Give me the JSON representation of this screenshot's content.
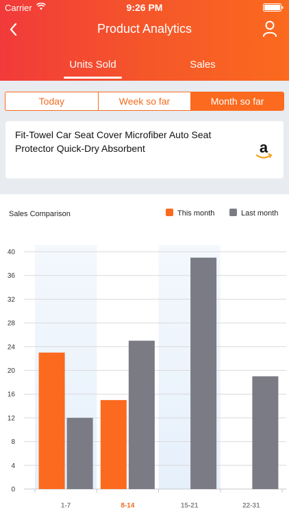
{
  "status_bar": {
    "carrier": "Carrier",
    "time": "9:26 PM"
  },
  "header": {
    "title": "Product Analytics",
    "back_icon": "chevron-left-icon",
    "profile_icon": "person-icon",
    "tabs": [
      {
        "label": "Units Sold",
        "active": true
      },
      {
        "label": "Sales",
        "active": false
      }
    ]
  },
  "period": {
    "options": [
      {
        "label": "Today"
      },
      {
        "label": "Week so far"
      },
      {
        "label": "Month so far"
      }
    ],
    "selected": "Month so far"
  },
  "product": {
    "title": "Fit-Towel Car Seat Cover Microfiber Auto Seat Protector Quick-Dry Absorbent",
    "store_icon": "amazon-logo",
    "store_glyph": "a"
  },
  "colors": {
    "accent": "#fb6a1e",
    "last_month": "#7a7b84",
    "highlight": "#f26a1e"
  },
  "chart_data": {
    "type": "bar",
    "title": "Sales Comparison",
    "categories": [
      "1-7",
      "8-14",
      "15-21",
      "22-31"
    ],
    "highlighted_category": "8-14",
    "series": [
      {
        "name": "This month",
        "color": "#fb6a1e",
        "values": [
          23,
          15,
          null,
          null
        ]
      },
      {
        "name": "Last month",
        "color": "#7a7b84",
        "values": [
          12,
          25,
          39,
          19
        ]
      }
    ],
    "ylim": [
      0,
      40
    ],
    "yticks": [
      0,
      4,
      8,
      12,
      16,
      20,
      24,
      28,
      32,
      36,
      40
    ],
    "grid": true,
    "legend_position": "top-right"
  }
}
